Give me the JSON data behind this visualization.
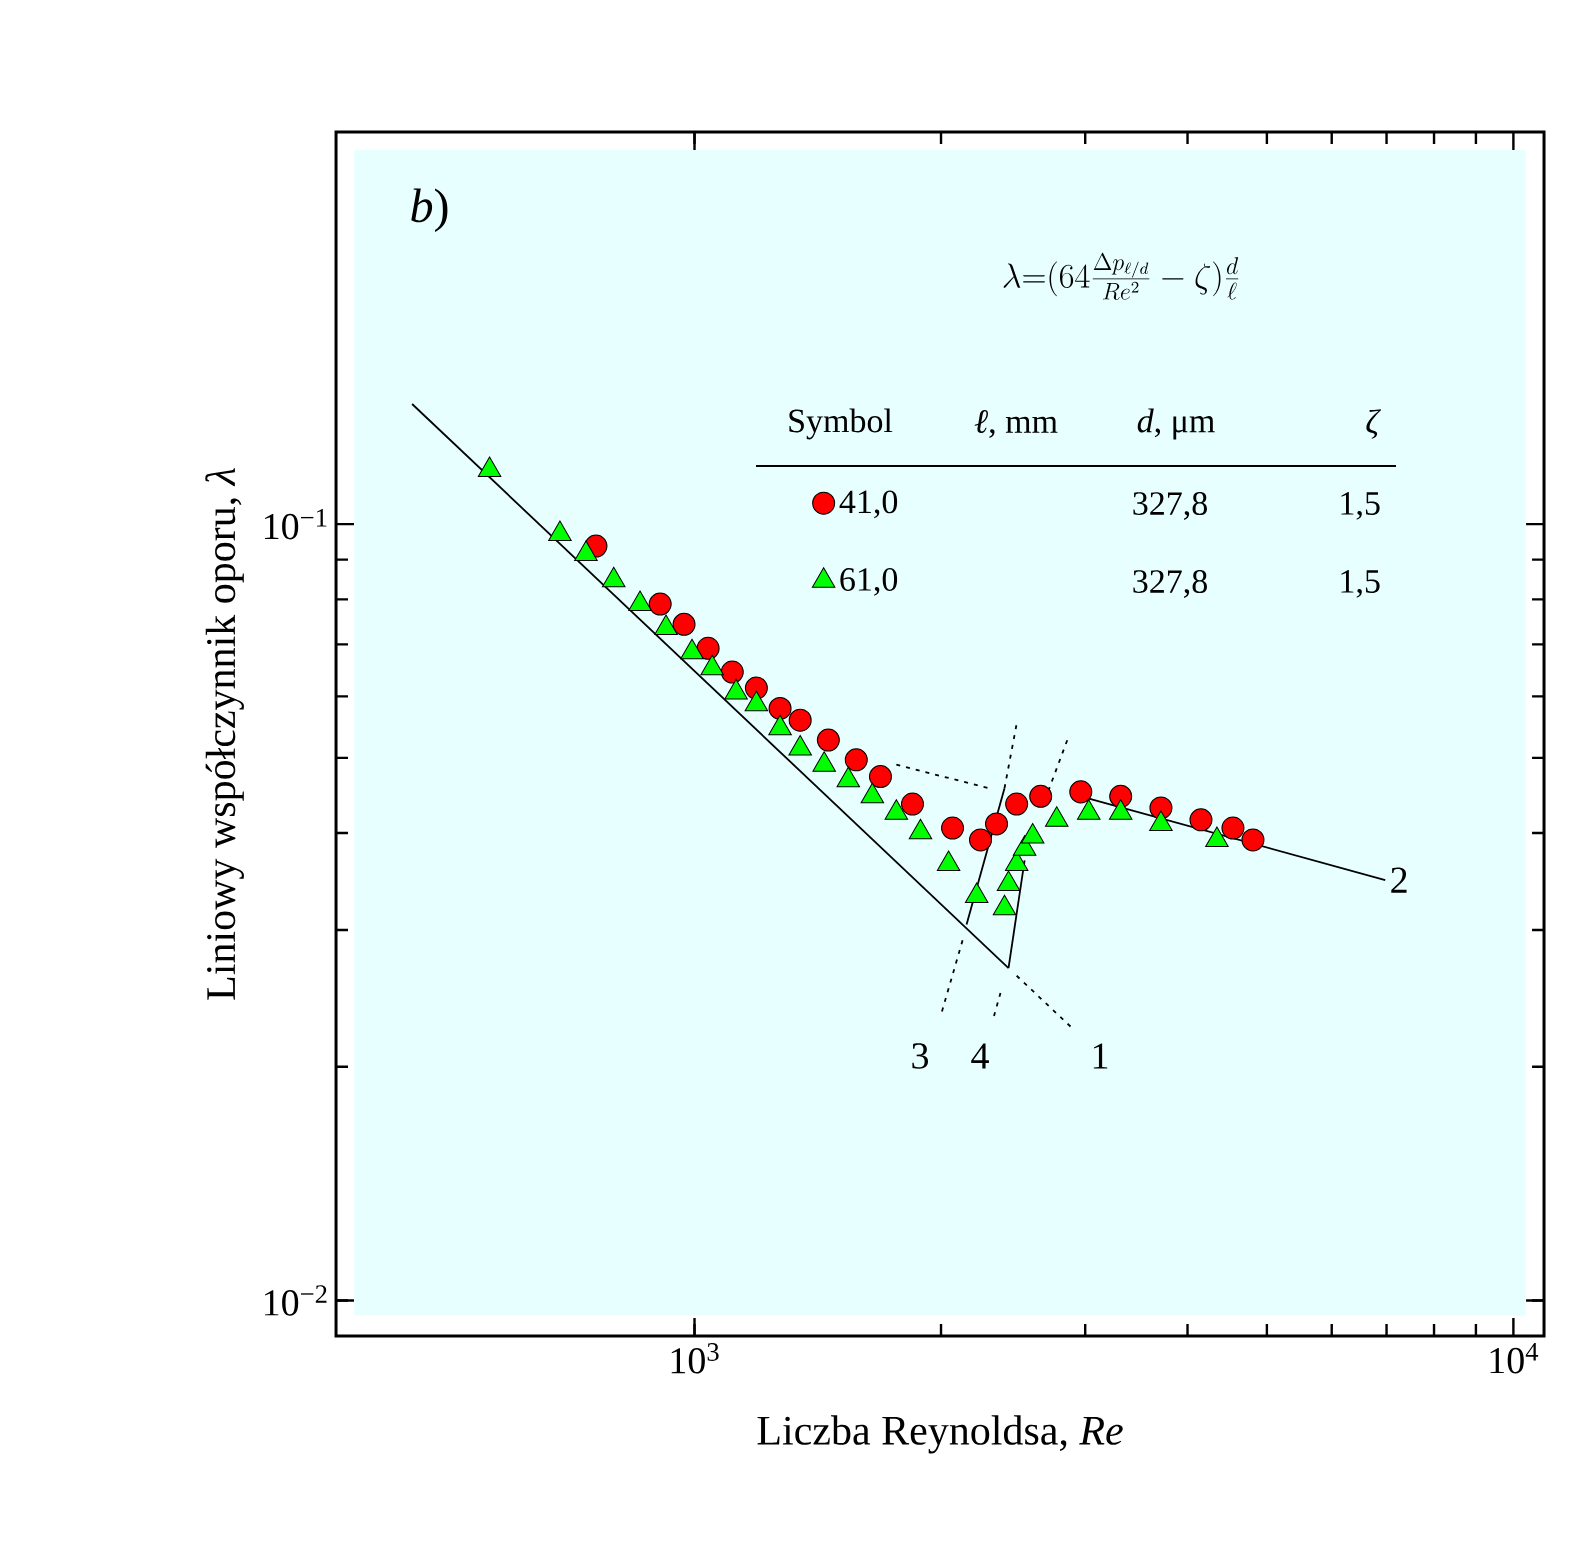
{
  "chart_data": {
    "type": "scatter",
    "xlabel": "Liczba Reynoldsa, *Re*",
    "ylabel": "Liniowy współczynnik oporu, *λ*",
    "log": "xy",
    "xlim": [
      365,
      10900
    ],
    "ylim": [
      0.009,
      0.32
    ],
    "xticks": [
      {
        "value": 1000,
        "label": "10$^{3}$"
      },
      {
        "value": 10000,
        "label": "10$^{4}$"
      }
    ],
    "yticks": [
      {
        "value": 0.01,
        "label": "10$^{−2}$"
      },
      {
        "value": 0.1,
        "label": "10$^{−1}$"
      }
    ],
    "grid": false,
    "legend": "top",
    "legend_title": "Symbol",
    "annotations": [
      "*b*)",
      "\\lambda{=}(64\\frac{\\Delta p_{\\ell/d}}{Re^2}-\\zeta)\\frac{d}{\\ell}",
      "*ℓ*, mm",
      "*d*, μm",
      "*ζ*",
      "327,8",
      "1,5",
      "327,8",
      "1,5",
      "3",
      "4",
      "1",
      "2"
    ],
    "series": [
      {
        "type": "line",
        "color": "#000000",
        "line_style": "solid",
        "x": [
          452,
          2418
        ],
        "values": [
          0.1428,
          0.0268
        ]
      },
      {
        "type": "line",
        "color": "#000000",
        "line_style": "solid",
        "x": [
          2418,
          2530
        ],
        "values": [
          0.0268,
          0.0369
        ]
      },
      {
        "type": "line",
        "color": "#000000",
        "line_style": "solid",
        "x": [
          2149,
          2391
        ],
        "values": [
          0.0305,
          0.0457
        ]
      },
      {
        "type": "line",
        "color": "#000000",
        "line_style": "solid",
        "x": [
          2963,
          6975
        ],
        "values": [
          0.0446,
          0.0348
        ]
      },
      {
        "type": "line",
        "color": "#000000",
        "line_style": "dotted",
        "x": [
          1764,
          2286
        ],
        "values": [
          0.049,
          0.0457
        ]
      },
      {
        "type": "line",
        "color": "#000000",
        "line_style": "dotted",
        "x": [
          2474,
          2896
        ],
        "values": [
          0.0262,
          0.0224
        ]
      },
      {
        "type": "line",
        "color": "#000000",
        "line_style": "dotted",
        "x": [
          2391,
          2474
        ],
        "values": [
          0.0457,
          0.0553
        ]
      },
      {
        "type": "line",
        "color": "#000000",
        "line_style": "dotted",
        "x": [
          2125,
          1997
        ],
        "values": [
          0.0291,
          0.0232
        ]
      },
      {
        "type": "line",
        "color": "#000000",
        "line_style": "dotted",
        "x": [
          2364,
          2312
        ],
        "values": [
          0.0249,
          0.0229
        ]
      },
      {
        "type": "line",
        "color": "#000000",
        "line_style": "dotted",
        "x": [
          2678,
          2864
        ],
        "values": [
          0.0441,
          0.0533
        ]
      },
      {
        "name": "41,0",
        "color": "#ff0000",
        "marker": "circle",
        "x": [
          758,
          908,
          971,
          1039,
          1112,
          1190,
          1272,
          1346,
          1457,
          1576,
          1687,
          1846,
          2066,
          2235,
          2338,
          2474,
          2647,
          2963,
          3315,
          3712,
          4154,
          4545,
          4808
        ],
        "values": [
          0.0937,
          0.0789,
          0.0743,
          0.0692,
          0.0645,
          0.0615,
          0.0579,
          0.0559,
          0.0527,
          0.0497,
          0.0473,
          0.0436,
          0.0406,
          0.0392,
          0.0411,
          0.0436,
          0.0446,
          0.0452,
          0.0446,
          0.0431,
          0.0416,
          0.0406,
          0.0392
        ]
      },
      {
        "name": "61,0",
        "color": "#00ff00",
        "marker": "triangle",
        "x": [
          562,
          685,
          737,
          797,
          858,
          923,
          993,
          1051,
          1124,
          1190,
          1272,
          1346,
          1440,
          1541,
          1649,
          1764,
          1888,
          2043,
          2211,
          2391,
          2418,
          2474,
          2530,
          2588,
          2769,
          3030,
          3315,
          3712,
          4345
        ],
        "values": [
          0.1174,
          0.0971,
          0.0915,
          0.0847,
          0.0789,
          0.0735,
          0.0684,
          0.0652,
          0.0607,
          0.0586,
          0.0546,
          0.0514,
          0.049,
          0.0468,
          0.0446,
          0.0425,
          0.0401,
          0.0365,
          0.0332,
          0.032,
          0.0344,
          0.0365,
          0.0382,
          0.0396,
          0.0416,
          0.0425,
          0.0425,
          0.0411,
          0.0392
        ]
      }
    ]
  }
}
